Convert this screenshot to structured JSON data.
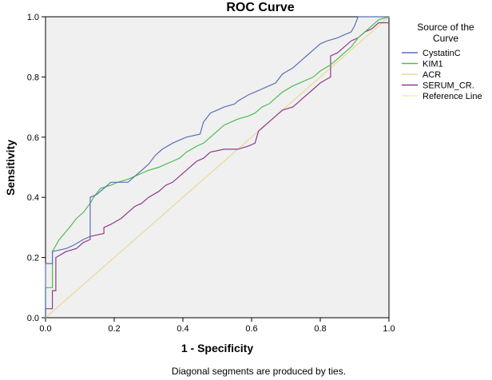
{
  "chart_data": {
    "type": "line",
    "title": "ROC Curve",
    "xlabel": "1 - Specificity",
    "ylabel": "Sensitivity",
    "xlim": [
      0,
      1
    ],
    "ylim": [
      0,
      1
    ],
    "xticks": [
      "0.0",
      "0.2",
      "0.4",
      "0.6",
      "0.8",
      "1.0"
    ],
    "yticks": [
      "0.0",
      "0.2",
      "0.4",
      "0.6",
      "0.8",
      "1.0"
    ],
    "grid": false,
    "legend_title": "Source of the Curve",
    "legend_position": "right",
    "footnote": "Diagonal segments are produced by ties.",
    "series": [
      {
        "name": "CystatinC",
        "color": "#5b6fb5",
        "x": [
          0,
          0,
          0.02,
          0.02,
          0.06,
          0.08,
          0.11,
          0.13,
          0.13,
          0.15,
          0.17,
          0.19,
          0.24,
          0.26,
          0.28,
          0.3,
          0.32,
          0.34,
          0.37,
          0.39,
          0.41,
          0.45,
          0.46,
          0.48,
          0.5,
          0.52,
          0.55,
          0.56,
          0.59,
          0.61,
          0.63,
          0.65,
          0.67,
          0.69,
          0.72,
          0.74,
          0.76,
          0.79,
          0.8,
          0.82,
          0.85,
          0.87,
          0.89,
          0.9,
          0.91,
          0.93,
          0.95,
          1.0
        ],
        "y": [
          0,
          0.18,
          0.18,
          0.22,
          0.23,
          0.24,
          0.26,
          0.27,
          0.4,
          0.41,
          0.43,
          0.45,
          0.45,
          0.47,
          0.49,
          0.51,
          0.54,
          0.56,
          0.58,
          0.59,
          0.6,
          0.61,
          0.65,
          0.68,
          0.69,
          0.7,
          0.71,
          0.72,
          0.74,
          0.75,
          0.76,
          0.77,
          0.78,
          0.81,
          0.83,
          0.85,
          0.87,
          0.9,
          0.91,
          0.92,
          0.93,
          0.94,
          0.95,
          0.97,
          1.0,
          1.0,
          1.0,
          1.0
        ]
      },
      {
        "name": "KIM1",
        "color": "#4cbd4c",
        "x": [
          0,
          0,
          0.02,
          0.02,
          0.04,
          0.07,
          0.09,
          0.11,
          0.13,
          0.14,
          0.16,
          0.19,
          0.21,
          0.24,
          0.26,
          0.28,
          0.3,
          0.33,
          0.35,
          0.37,
          0.39,
          0.41,
          0.44,
          0.46,
          0.48,
          0.5,
          0.52,
          0.54,
          0.56,
          0.59,
          0.61,
          0.63,
          0.65,
          0.67,
          0.69,
          0.72,
          0.74,
          0.76,
          0.78,
          0.8,
          0.83,
          0.85,
          0.87,
          0.89,
          0.91,
          0.93,
          0.95,
          0.97,
          1.0
        ],
        "y": [
          0,
          0.1,
          0.1,
          0.22,
          0.26,
          0.3,
          0.33,
          0.35,
          0.38,
          0.4,
          0.43,
          0.44,
          0.45,
          0.46,
          0.47,
          0.48,
          0.49,
          0.5,
          0.51,
          0.52,
          0.53,
          0.55,
          0.57,
          0.58,
          0.6,
          0.62,
          0.64,
          0.65,
          0.66,
          0.67,
          0.68,
          0.7,
          0.71,
          0.73,
          0.75,
          0.77,
          0.78,
          0.79,
          0.8,
          0.82,
          0.84,
          0.86,
          0.88,
          0.9,
          0.93,
          0.95,
          0.97,
          0.99,
          1.0
        ]
      },
      {
        "name": "ACR",
        "color": "#e8d9a3",
        "x": [
          0,
          0.05,
          0.1,
          0.15,
          0.2,
          0.25,
          0.3,
          0.35,
          0.4,
          0.45,
          0.5,
          0.55,
          0.6,
          0.62,
          0.65,
          0.7,
          0.75,
          0.8,
          0.85,
          0.9,
          0.95,
          1.0
        ],
        "y": [
          0,
          0.05,
          0.1,
          0.15,
          0.2,
          0.25,
          0.3,
          0.35,
          0.4,
          0.45,
          0.5,
          0.55,
          0.6,
          0.62,
          0.65,
          0.7,
          0.75,
          0.8,
          0.85,
          0.9,
          0.95,
          1.0
        ]
      },
      {
        "name": "SERUM_CR.",
        "color": "#8e3a8e",
        "x": [
          0,
          0,
          0.02,
          0.02,
          0.03,
          0.03,
          0.06,
          0.09,
          0.11,
          0.13,
          0.13,
          0.17,
          0.17,
          0.19,
          0.22,
          0.24,
          0.26,
          0.28,
          0.3,
          0.33,
          0.35,
          0.37,
          0.39,
          0.41,
          0.44,
          0.46,
          0.48,
          0.52,
          0.56,
          0.59,
          0.61,
          0.62,
          0.63,
          0.65,
          0.67,
          0.69,
          0.72,
          0.74,
          0.76,
          0.78,
          0.8,
          0.83,
          0.83,
          0.85,
          0.87,
          0.89,
          0.91,
          0.93,
          0.95,
          0.97,
          1.0
        ],
        "y": [
          0,
          0.03,
          0.03,
          0.09,
          0.09,
          0.2,
          0.22,
          0.23,
          0.25,
          0.26,
          0.27,
          0.28,
          0.3,
          0.31,
          0.33,
          0.35,
          0.37,
          0.38,
          0.4,
          0.42,
          0.44,
          0.45,
          0.47,
          0.49,
          0.52,
          0.53,
          0.55,
          0.56,
          0.56,
          0.57,
          0.58,
          0.62,
          0.63,
          0.65,
          0.67,
          0.69,
          0.7,
          0.72,
          0.74,
          0.76,
          0.78,
          0.8,
          0.87,
          0.88,
          0.9,
          0.92,
          0.93,
          0.95,
          0.96,
          0.98,
          0.98
        ]
      },
      {
        "name": "Reference Line",
        "color": "#f4ef9a",
        "x": [
          0,
          1
        ],
        "y": [
          0,
          1
        ]
      }
    ]
  }
}
